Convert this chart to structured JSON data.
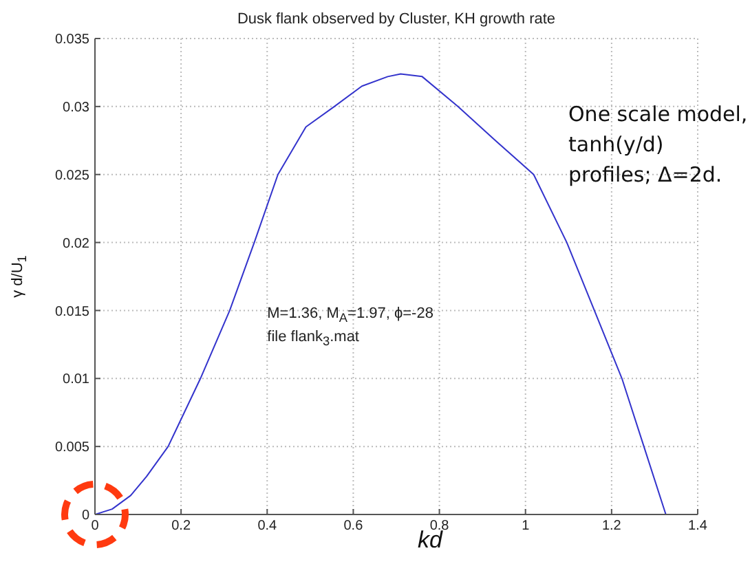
{
  "chart_data": {
    "type": "line",
    "title": "Dusk flank observed by Cluster, KH growth rate",
    "xlabel": "kd",
    "ylabel": "γ d/U$_{1}$",
    "annotations": [
      "M=1.36, M$_{A}$=1.97, ϕ=-28",
      "file flank$_{3}$.mat",
      "One scale model,",
      "tanh(y/d)",
      "profiles; Δ=2d."
    ],
    "series": [
      {
        "color": "#3333cc",
        "x": [
          0,
          0.04,
          0.083,
          0.12,
          0.17,
          0.245,
          0.313,
          0.37,
          0.425,
          0.49,
          0.556,
          0.62,
          0.68,
          0.71,
          0.76,
          0.843,
          0.93,
          1.019,
          1.096,
          1.16,
          1.224,
          1.275,
          1.326
        ],
        "values": [
          0,
          0.0004,
          0.0014,
          0.0028,
          0.005,
          0.01,
          0.015,
          0.02,
          0.025,
          0.0285,
          0.03,
          0.0315,
          0.0322,
          0.0324,
          0.0322,
          0.03,
          0.0275,
          0.025,
          0.02,
          0.015,
          0.01,
          0.005,
          0
        ]
      }
    ],
    "xlim": [
      0,
      1.4
    ],
    "xticks": [
      0,
      0.2,
      0.4,
      0.6,
      0.8,
      1,
      1.2,
      1.4
    ],
    "ylim": [
      0,
      0.035
    ],
    "yticks": [
      0,
      0.005,
      0.01,
      0.015,
      0.02,
      0.025,
      0.03,
      0.035
    ],
    "grid": true,
    "legend": false,
    "marker": "none",
    "line_style": "solid"
  }
}
